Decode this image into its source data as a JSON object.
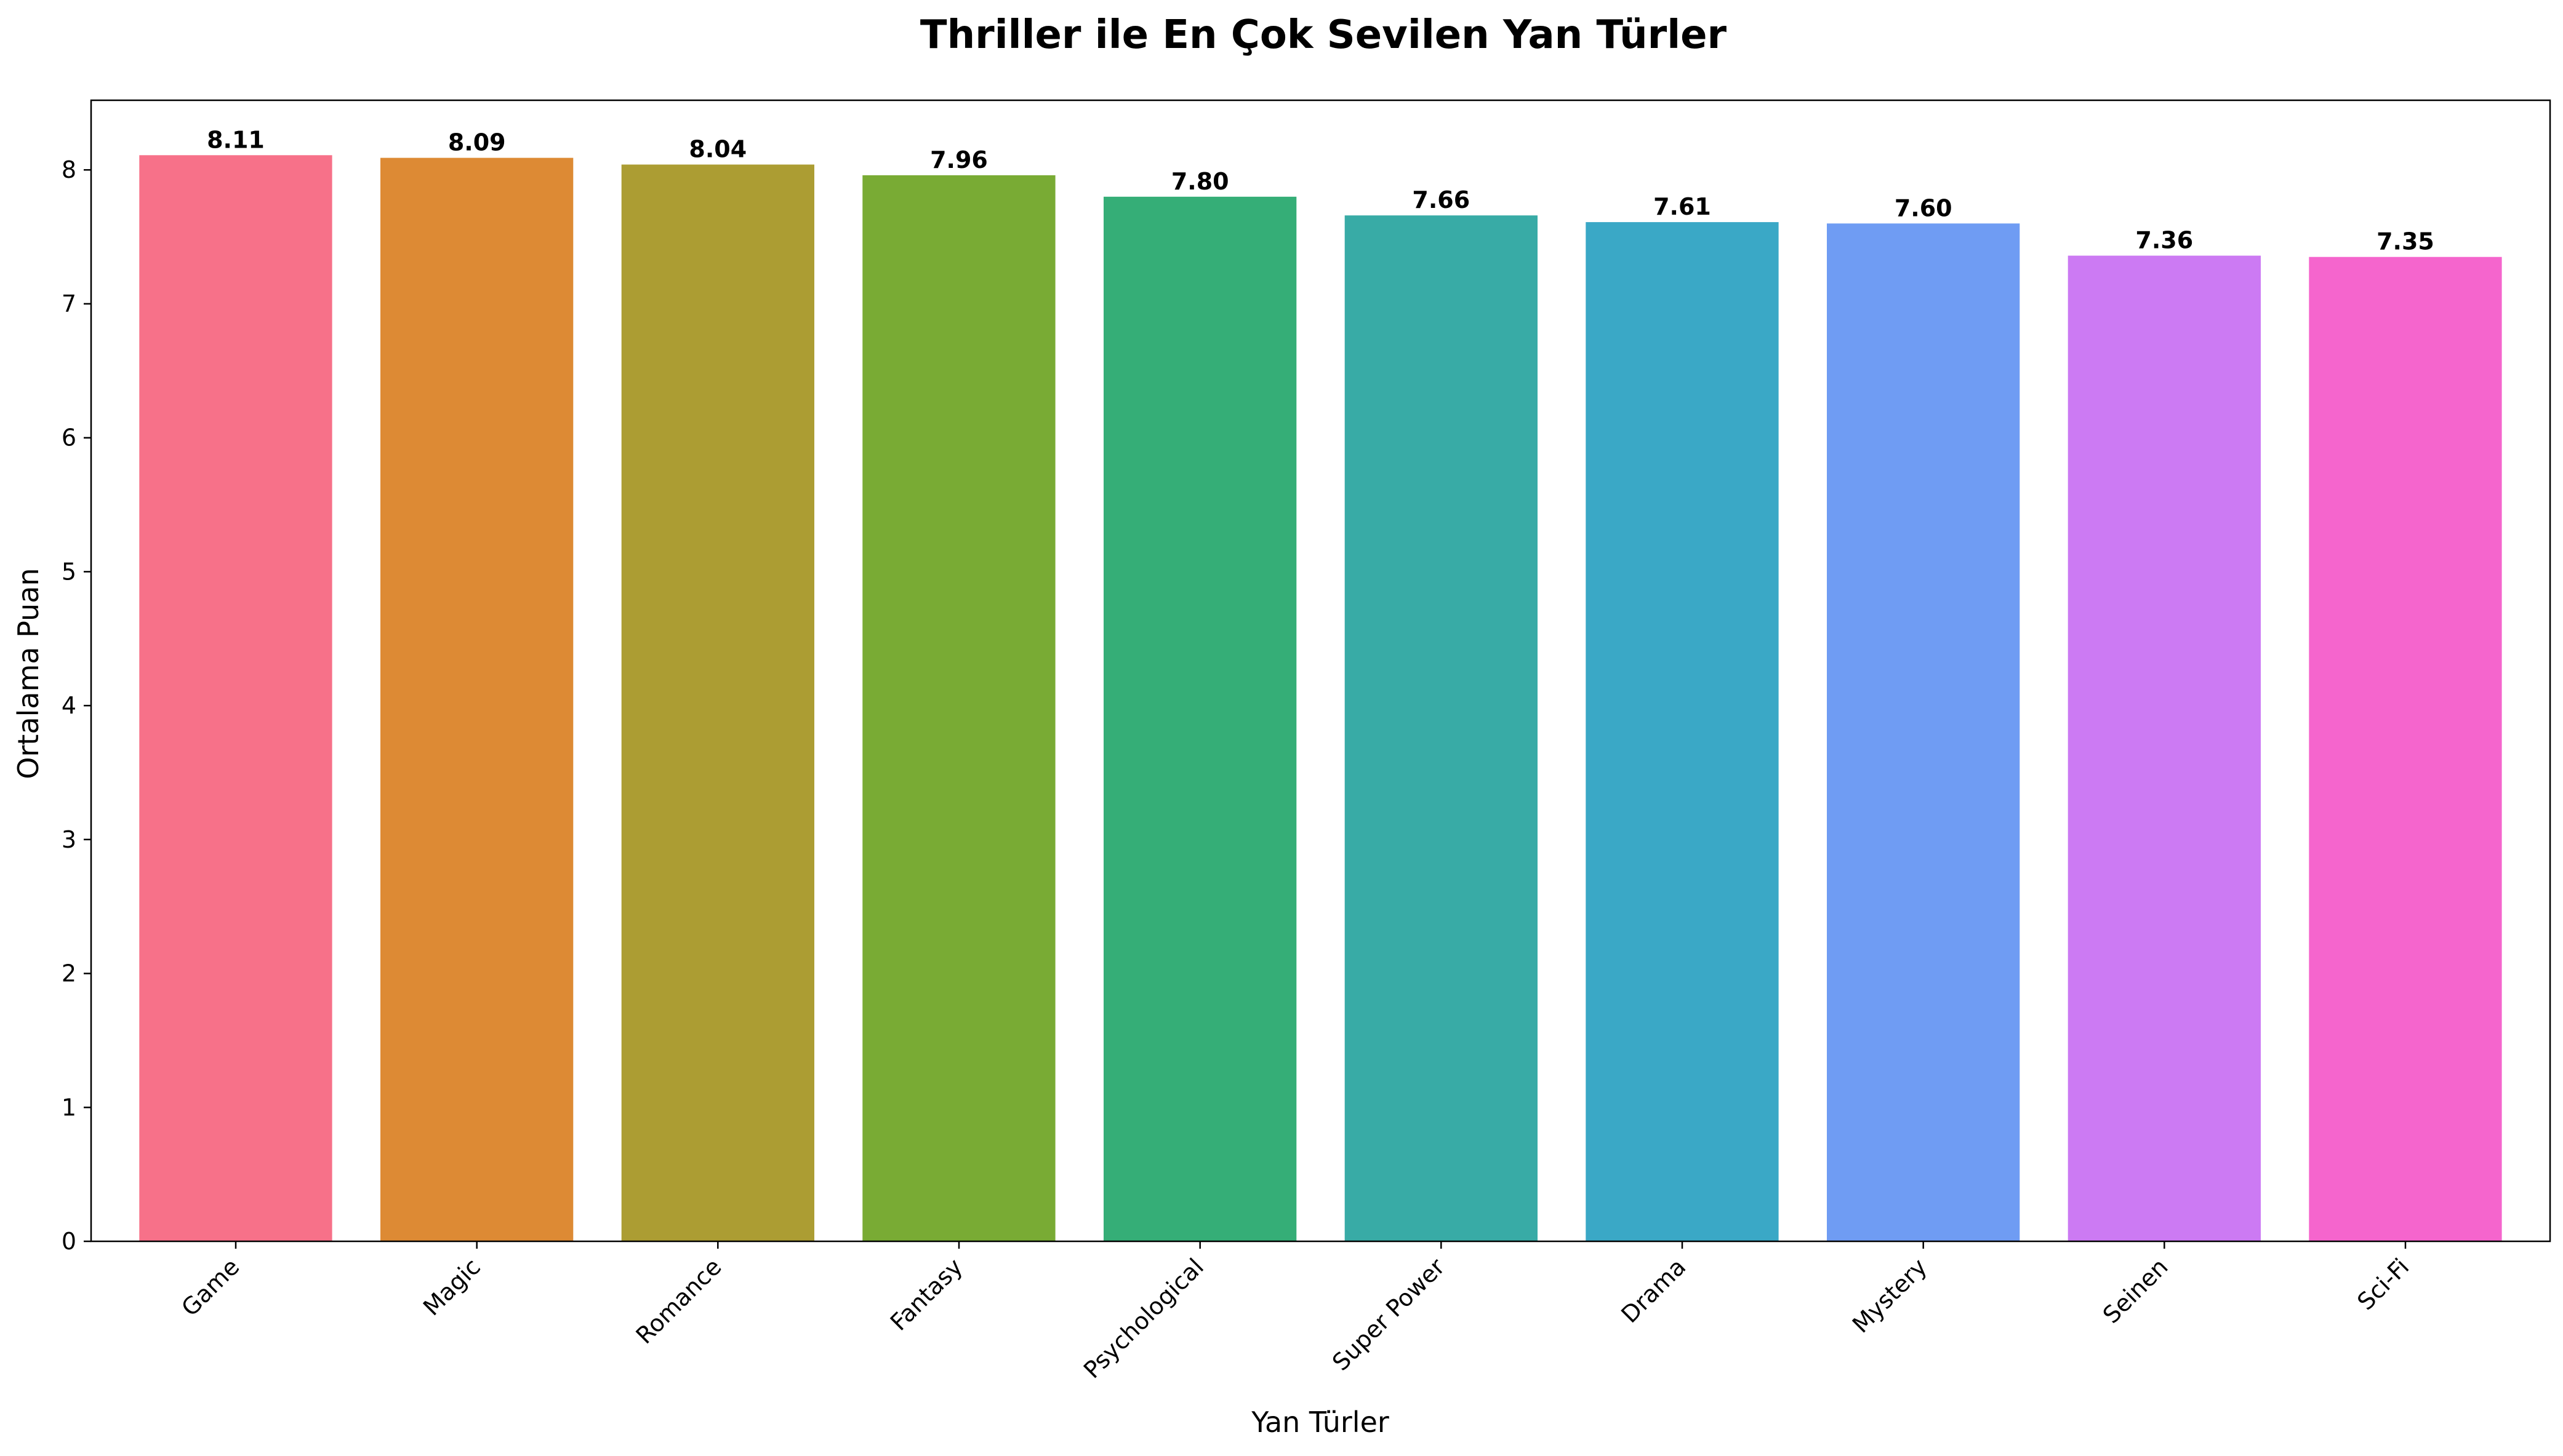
{
  "chart_data": {
    "type": "bar",
    "title": "Thriller ile En Çok Sevilen Yan Türler",
    "xlabel": "Yan Türler",
    "ylabel": "Ortalama Puan",
    "ylim": [
      0,
      8.52
    ],
    "yticks": [
      0,
      1,
      2,
      3,
      4,
      5,
      6,
      7,
      8
    ],
    "grid": false,
    "categories": [
      "Game",
      "Magic",
      "Romance",
      "Fantasy",
      "Psychological",
      "Super Power",
      "Drama",
      "Mystery",
      "Seinen",
      "Sci-Fi"
    ],
    "values": [
      8.11,
      8.09,
      8.04,
      7.96,
      7.8,
      7.66,
      7.61,
      7.6,
      7.36,
      7.35
    ],
    "value_labels": [
      "8.11",
      "8.09",
      "8.04",
      "7.96",
      "7.80",
      "7.66",
      "7.61",
      "7.60",
      "7.36",
      "7.35"
    ],
    "colors": [
      "#f77189",
      "#dd8a34",
      "#ac9d33",
      "#79ab34",
      "#35ae77",
      "#38aba6",
      "#3aa8c6",
      "#6f9cf3",
      "#cc7af3",
      "#f565cd"
    ]
  }
}
